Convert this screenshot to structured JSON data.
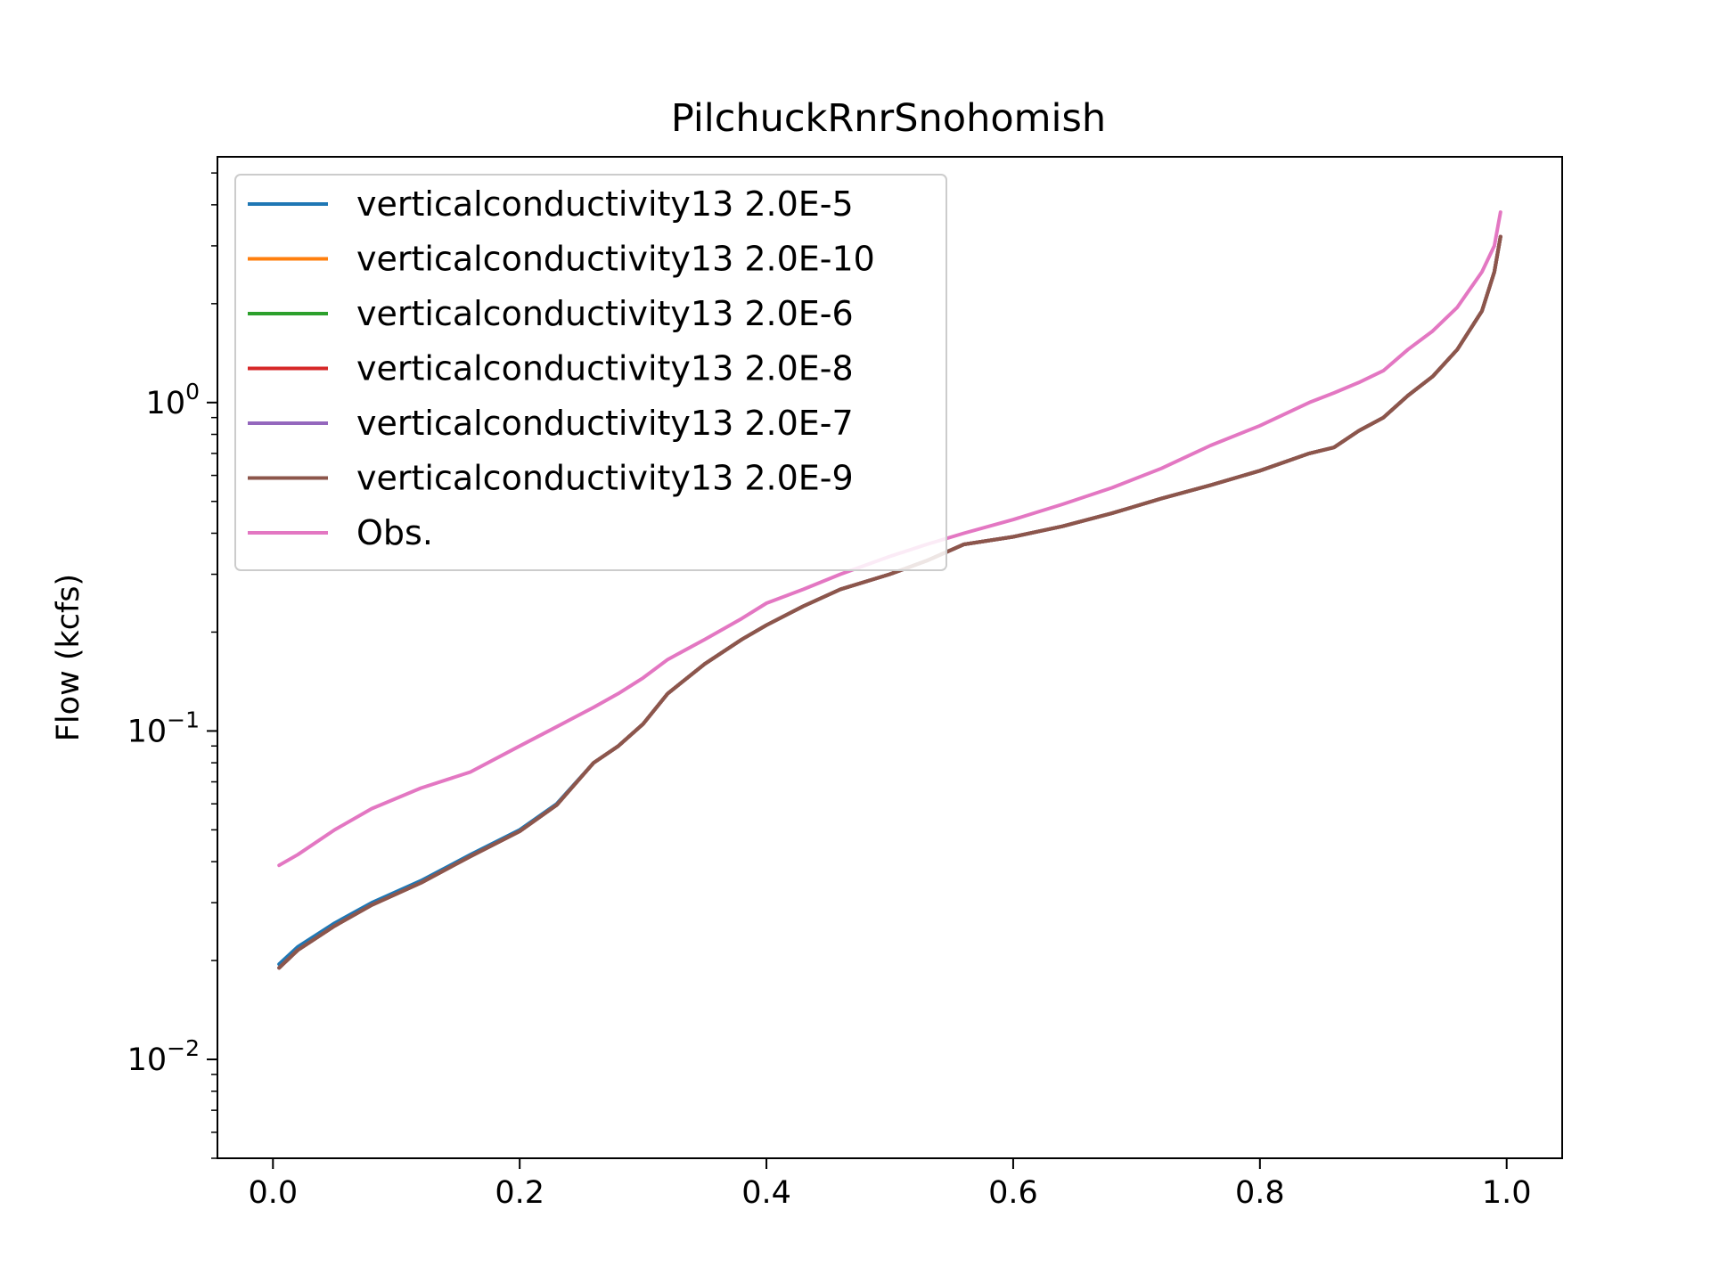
{
  "chart_data": {
    "type": "line",
    "title": "PilchuckRnrSnohomish",
    "xlabel": "",
    "ylabel": "Flow (kcfs)",
    "xlim": [
      -0.045,
      1.045
    ],
    "ylim": [
      0.005,
      5.6
    ],
    "yscale": "log",
    "grid": false,
    "legend_position": "upper-left",
    "x_ticks": [
      {
        "value": 0.0,
        "label": "0.0"
      },
      {
        "value": 0.2,
        "label": "0.2"
      },
      {
        "value": 0.4,
        "label": "0.4"
      },
      {
        "value": 0.6,
        "label": "0.6"
      },
      {
        "value": 0.8,
        "label": "0.8"
      },
      {
        "value": 1.0,
        "label": "1.0"
      }
    ],
    "y_ticks": [
      {
        "value": 0.01,
        "base": "10",
        "exp": "−2"
      },
      {
        "value": 0.1,
        "base": "10",
        "exp": "−1"
      },
      {
        "value": 1,
        "base": "10",
        "exp": "0"
      }
    ],
    "x": [
      0.005,
      0.02,
      0.05,
      0.08,
      0.12,
      0.16,
      0.2,
      0.23,
      0.26,
      0.28,
      0.3,
      0.32,
      0.35,
      0.38,
      0.4,
      0.43,
      0.46,
      0.5,
      0.53,
      0.56,
      0.6,
      0.64,
      0.68,
      0.72,
      0.76,
      0.8,
      0.84,
      0.86,
      0.88,
      0.9,
      0.92,
      0.94,
      0.96,
      0.98,
      0.99,
      0.995
    ],
    "series": [
      {
        "name": "verticalconductivity13 2.0E-5",
        "color": "#1f77b4",
        "values": [
          0.0195,
          0.022,
          0.026,
          0.03,
          0.035,
          0.042,
          0.05,
          0.06,
          0.08,
          0.09,
          0.105,
          0.13,
          0.16,
          0.19,
          0.21,
          0.24,
          0.27,
          0.3,
          0.33,
          0.37,
          0.39,
          0.42,
          0.46,
          0.51,
          0.56,
          0.62,
          0.7,
          0.73,
          0.82,
          0.9,
          1.05,
          1.2,
          1.45,
          1.9,
          2.5,
          3.2
        ]
      },
      {
        "name": "verticalconductivity13 2.0E-10",
        "color": "#ff7f0e",
        "values": [
          0.019,
          0.0215,
          0.0255,
          0.0295,
          0.0345,
          0.0415,
          0.0495,
          0.0595,
          0.08,
          0.09,
          0.105,
          0.13,
          0.16,
          0.19,
          0.21,
          0.24,
          0.27,
          0.3,
          0.33,
          0.37,
          0.39,
          0.42,
          0.46,
          0.51,
          0.56,
          0.62,
          0.7,
          0.73,
          0.82,
          0.9,
          1.05,
          1.2,
          1.45,
          1.9,
          2.5,
          3.2
        ]
      },
      {
        "name": "verticalconductivity13 2.0E-6",
        "color": "#2ca02c",
        "values": [
          0.019,
          0.0215,
          0.0255,
          0.0295,
          0.0345,
          0.0415,
          0.0495,
          0.0595,
          0.08,
          0.09,
          0.105,
          0.13,
          0.16,
          0.19,
          0.21,
          0.24,
          0.27,
          0.3,
          0.33,
          0.37,
          0.39,
          0.42,
          0.46,
          0.51,
          0.56,
          0.62,
          0.7,
          0.73,
          0.82,
          0.9,
          1.05,
          1.2,
          1.45,
          1.9,
          2.5,
          3.2
        ]
      },
      {
        "name": "verticalconductivity13 2.0E-8",
        "color": "#d62728",
        "values": [
          0.019,
          0.0215,
          0.0255,
          0.0295,
          0.0345,
          0.0415,
          0.0495,
          0.0595,
          0.08,
          0.09,
          0.105,
          0.13,
          0.16,
          0.19,
          0.21,
          0.24,
          0.27,
          0.3,
          0.33,
          0.37,
          0.39,
          0.42,
          0.46,
          0.51,
          0.56,
          0.62,
          0.7,
          0.73,
          0.82,
          0.9,
          1.05,
          1.2,
          1.45,
          1.9,
          2.5,
          3.2
        ]
      },
      {
        "name": "verticalconductivity13 2.0E-7",
        "color": "#9467bd",
        "values": [
          0.019,
          0.0215,
          0.0255,
          0.0295,
          0.0345,
          0.0415,
          0.0495,
          0.0595,
          0.08,
          0.09,
          0.105,
          0.13,
          0.16,
          0.19,
          0.21,
          0.24,
          0.27,
          0.3,
          0.33,
          0.37,
          0.39,
          0.42,
          0.46,
          0.51,
          0.56,
          0.62,
          0.7,
          0.73,
          0.82,
          0.9,
          1.05,
          1.2,
          1.45,
          1.9,
          2.5,
          3.2
        ]
      },
      {
        "name": "verticalconductivity13 2.0E-9",
        "color": "#8c564b",
        "values": [
          0.019,
          0.0215,
          0.0255,
          0.0295,
          0.0345,
          0.0415,
          0.0495,
          0.0595,
          0.08,
          0.09,
          0.105,
          0.13,
          0.16,
          0.19,
          0.21,
          0.24,
          0.27,
          0.3,
          0.33,
          0.37,
          0.39,
          0.42,
          0.46,
          0.51,
          0.56,
          0.62,
          0.7,
          0.73,
          0.82,
          0.9,
          1.05,
          1.2,
          1.45,
          1.9,
          2.5,
          3.2
        ]
      },
      {
        "name": "Obs.",
        "color": "#e377c2",
        "values": [
          0.039,
          0.042,
          0.05,
          0.058,
          0.067,
          0.075,
          0.09,
          0.103,
          0.118,
          0.13,
          0.145,
          0.165,
          0.19,
          0.22,
          0.245,
          0.27,
          0.3,
          0.34,
          0.37,
          0.4,
          0.44,
          0.49,
          0.55,
          0.63,
          0.74,
          0.85,
          1.0,
          1.07,
          1.15,
          1.25,
          1.45,
          1.65,
          1.95,
          2.5,
          3.0,
          3.8
        ]
      }
    ]
  }
}
